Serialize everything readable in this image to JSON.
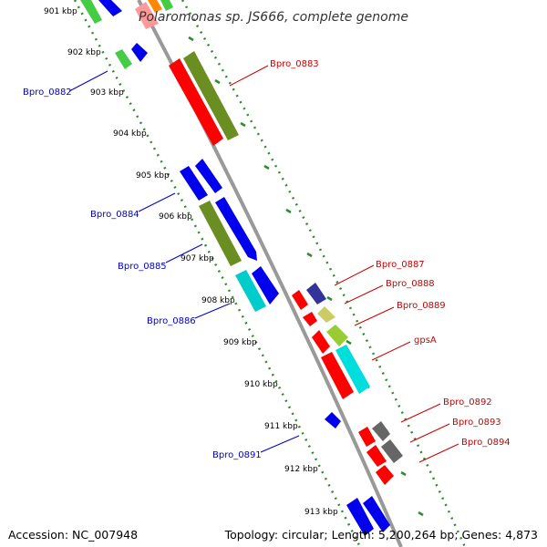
{
  "title": "Polaromonas sp. JS666, complete genome",
  "accession": "Accession: NC_007948",
  "topology": "Topology: circular; Length: 5,200,264 bp; Genes: 4,873",
  "colors": {
    "backbone": "#999999",
    "ruler": "#2e8b2e",
    "label_blue": "#0000cc",
    "label_red": "#cc0000"
  },
  "kbp_labels": [
    "901 kbp",
    "902 kbp",
    "903 kbp",
    "904 kbp",
    "905 kbp",
    "906 kbp",
    "907 kbp",
    "908 kbp",
    "909 kbp",
    "910 kbp",
    "911 kbp",
    "912 kbp",
    "913 kbp"
  ],
  "gene_labels_left": [
    "Bpro_0882",
    "Bpro_0884",
    "Bpro_0885",
    "Bpro_0886",
    "Bpro_0891"
  ],
  "gene_labels_right": [
    "Bpro_0883",
    "Bpro_0887",
    "Bpro_0888",
    "Bpro_0889",
    "gpsA",
    "Bpro_0892",
    "Bpro_0893",
    "Bpro_0894"
  ]
}
